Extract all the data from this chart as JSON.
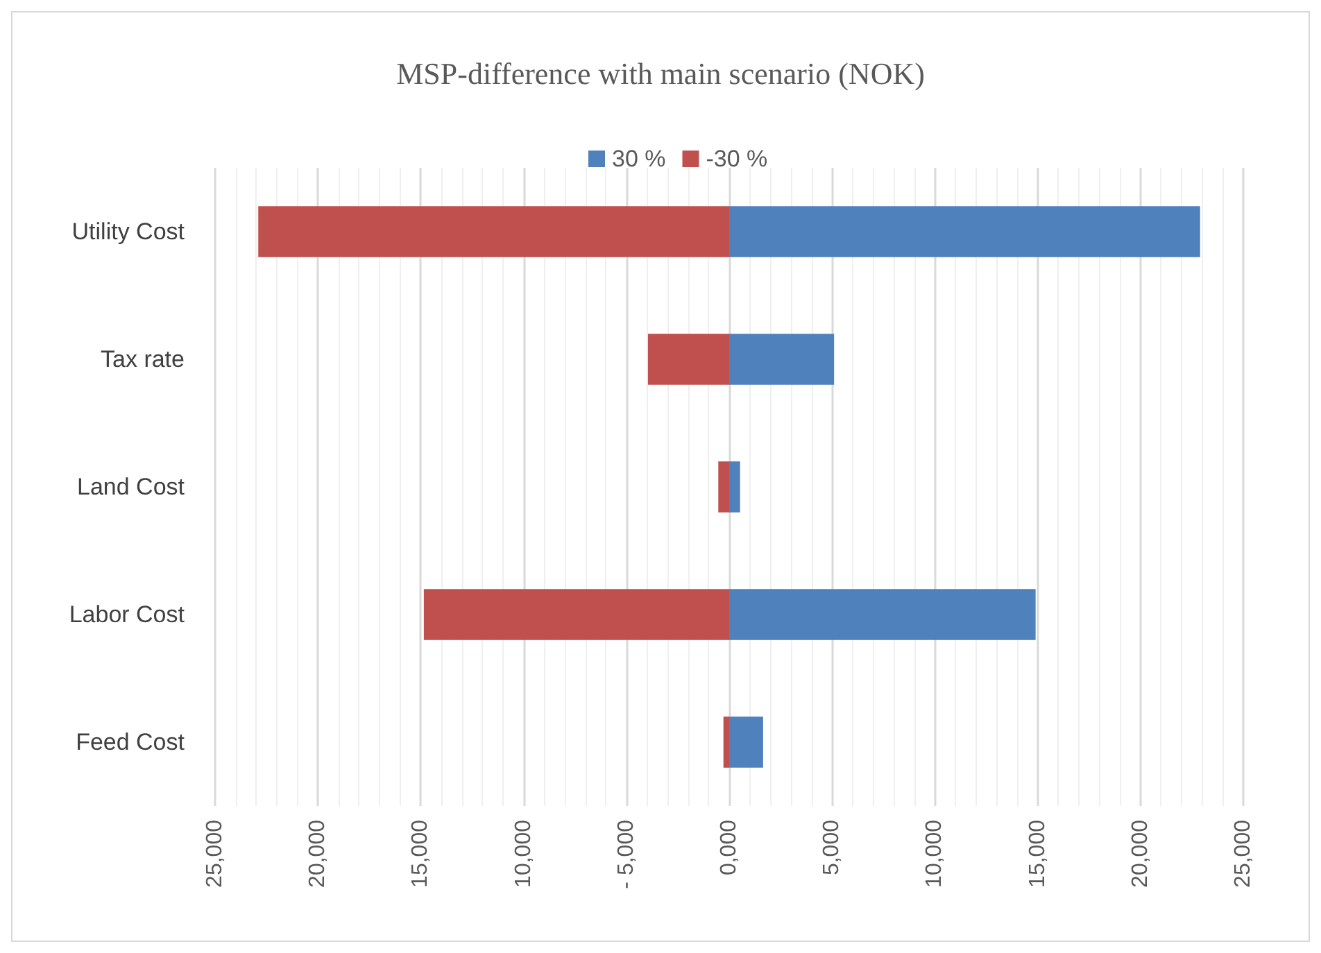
{
  "chart_data": {
    "type": "bar",
    "orientation": "horizontal",
    "stacked": true,
    "title": "MSP-difference with main scenario (NOK)",
    "categories": [
      "Utility Cost",
      "Tax rate",
      "Land Cost",
      "Labor Cost",
      "Feed Cost"
    ],
    "series": [
      {
        "name": "30 %",
        "color": "#4f81bd",
        "values": [
          22900,
          5100,
          530,
          14900,
          1650
        ]
      },
      {
        "name": "-30 %",
        "color": "#c0504d",
        "values": [
          -22900,
          -3950,
          -530,
          -14850,
          -280
        ]
      }
    ],
    "xlim": [
      -25000,
      25000
    ],
    "xticks": [
      {
        "value": -25000,
        "label": "25,000"
      },
      {
        "value": -20000,
        "label": "20,000"
      },
      {
        "value": -15000,
        "label": "15,000"
      },
      {
        "value": -10000,
        "label": "10,000"
      },
      {
        "value": -5000,
        "label": "- 5,000"
      },
      {
        "value": 0,
        "label": "0,000"
      },
      {
        "value": 5000,
        "label": "5,000"
      },
      {
        "value": 10000,
        "label": "10,000"
      },
      {
        "value": 15000,
        "label": "15,000"
      },
      {
        "value": 20000,
        "label": "20,000"
      },
      {
        "value": 25000,
        "label": "25,000"
      }
    ],
    "grid": "x",
    "legend": "top"
  }
}
